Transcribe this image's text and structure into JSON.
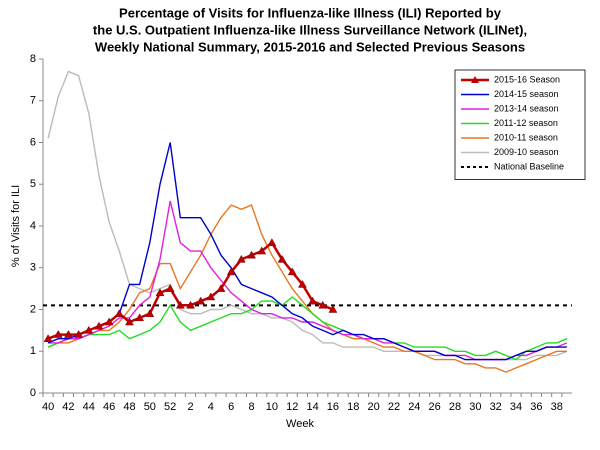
{
  "chart_data": {
    "type": "line",
    "title": [
      "Percentage of Visits for Influenza-like Illness (ILI) Reported by",
      "the U.S. Outpatient Influenza-like Illness Surveillance Network (ILINet),",
      "Weekly National Summary, 2015-2016 and Selected Previous Seasons"
    ],
    "x_label": "Week",
    "y_label": "% of Visits for ILI",
    "categories": [
      "40",
      null,
      "42",
      null,
      "44",
      null,
      "46",
      null,
      "48",
      null,
      "50",
      null,
      "52",
      null,
      "2",
      null,
      "4",
      null,
      "6",
      null,
      "8",
      null,
      "10",
      null,
      "12",
      null,
      "14",
      null,
      "16",
      null,
      "18",
      null,
      "20",
      null,
      "22",
      null,
      "24",
      null,
      "26",
      null,
      "28",
      null,
      "30",
      null,
      "32",
      null,
      "34",
      null,
      "36",
      null,
      "38",
      null
    ],
    "ylim": [
      0,
      8
    ],
    "yticks": [
      0,
      1,
      2,
      3,
      4,
      5,
      6,
      7,
      8
    ],
    "legend": "upper right",
    "series": [
      {
        "name": "2015-16 Season",
        "color": "#c00000",
        "marker": "triangle",
        "values": [
          1.3,
          1.4,
          1.4,
          1.4,
          1.5,
          1.6,
          1.7,
          1.9,
          1.7,
          1.8,
          1.9,
          2.4,
          2.5,
          2.1,
          2.1,
          2.2,
          2.3,
          2.5,
          2.9,
          3.2,
          3.3,
          3.4,
          3.6,
          3.2,
          2.9,
          2.6,
          2.2,
          2.1,
          2.0,
          null,
          null,
          null,
          null,
          null,
          null,
          null,
          null,
          null,
          null,
          null,
          null,
          null,
          null,
          null,
          null,
          null,
          null,
          null,
          null,
          null,
          null,
          null
        ]
      },
      {
        "name": "2014-15 season",
        "color": "#0000cc",
        "values": [
          1.2,
          1.3,
          1.3,
          1.4,
          1.5,
          1.6,
          1.7,
          1.9,
          2.6,
          2.6,
          3.6,
          5.0,
          6.0,
          4.2,
          4.2,
          4.2,
          3.8,
          3.3,
          3.0,
          2.6,
          2.5,
          2.4,
          2.3,
          2.1,
          1.9,
          1.8,
          1.6,
          1.5,
          1.4,
          1.5,
          1.4,
          1.4,
          1.3,
          1.3,
          1.2,
          1.1,
          1.0,
          1.0,
          1.0,
          0.9,
          0.9,
          0.8,
          0.8,
          0.8,
          0.8,
          0.8,
          0.9,
          1.0,
          1.0,
          1.1,
          1.1,
          1.1
        ]
      },
      {
        "name": "2013-14 season",
        "color": "#e020e0",
        "values": [
          1.2,
          1.2,
          1.3,
          1.3,
          1.4,
          1.5,
          1.6,
          1.8,
          1.8,
          2.1,
          2.3,
          3.2,
          4.6,
          3.6,
          3.4,
          3.4,
          3.0,
          2.7,
          2.4,
          2.2,
          2.0,
          1.9,
          1.9,
          1.8,
          1.8,
          1.7,
          1.7,
          1.6,
          1.5,
          1.4,
          1.4,
          1.3,
          1.3,
          1.2,
          1.2,
          1.1,
          1.0,
          1.0,
          1.0,
          0.9,
          0.9,
          0.9,
          0.8,
          0.8,
          0.8,
          0.8,
          0.9,
          0.9,
          1.0,
          1.1,
          1.1,
          1.2
        ]
      },
      {
        "name": "2011-12 season",
        "color": "#22dd22",
        "values": [
          1.1,
          1.2,
          1.3,
          1.3,
          1.4,
          1.4,
          1.4,
          1.5,
          1.3,
          1.4,
          1.5,
          1.7,
          2.1,
          1.7,
          1.5,
          1.6,
          1.7,
          1.8,
          1.9,
          1.9,
          2.0,
          2.2,
          2.2,
          2.1,
          2.3,
          2.1,
          1.9,
          1.7,
          1.6,
          1.5,
          1.4,
          1.3,
          1.3,
          1.3,
          1.2,
          1.2,
          1.1,
          1.1,
          1.1,
          1.1,
          1.0,
          1.0,
          0.9,
          0.9,
          1.0,
          0.9,
          0.8,
          1.0,
          1.1,
          1.2,
          1.2,
          1.3
        ]
      },
      {
        "name": "2010-11 season",
        "color": "#e87722",
        "values": [
          1.1,
          1.2,
          1.2,
          1.3,
          1.4,
          1.5,
          1.5,
          1.7,
          2.0,
          2.4,
          2.5,
          3.1,
          3.1,
          2.5,
          2.9,
          3.3,
          3.8,
          4.2,
          4.5,
          4.4,
          4.5,
          3.8,
          3.3,
          2.9,
          2.5,
          2.2,
          1.9,
          1.7,
          1.5,
          1.4,
          1.3,
          1.3,
          1.2,
          1.1,
          1.1,
          1.0,
          1.0,
          0.9,
          0.8,
          0.8,
          0.8,
          0.7,
          0.7,
          0.6,
          0.6,
          0.5,
          0.6,
          0.7,
          0.8,
          0.9,
          1.0,
          1.0
        ]
      },
      {
        "name": "2009-10 season",
        "color": "#bbbbbb",
        "values": [
          6.1,
          7.1,
          7.7,
          7.6,
          6.7,
          5.2,
          4.1,
          3.4,
          2.6,
          2.5,
          2.4,
          2.5,
          2.6,
          2.0,
          1.9,
          1.9,
          2.0,
          2.0,
          2.1,
          2.0,
          1.9,
          1.9,
          1.8,
          1.8,
          1.7,
          1.5,
          1.4,
          1.2,
          1.2,
          1.1,
          1.1,
          1.1,
          1.1,
          1.0,
          1.0,
          1.0,
          1.0,
          0.9,
          0.9,
          0.9,
          0.9,
          0.8,
          0.8,
          0.8,
          0.8,
          0.8,
          0.8,
          0.8,
          0.9,
          0.9,
          0.9,
          1.0
        ]
      }
    ],
    "baseline": {
      "name": "National Baseline",
      "value": 2.1,
      "color": "#000000"
    }
  }
}
